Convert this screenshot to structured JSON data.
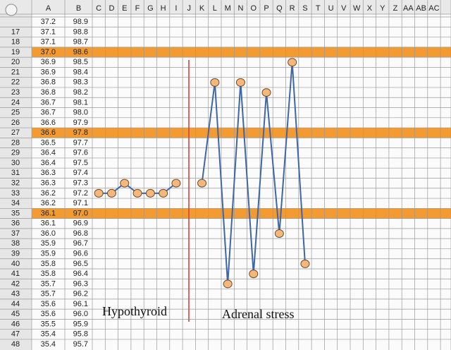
{
  "sheet": {
    "columns": [
      "A",
      "B",
      "C",
      "D",
      "E",
      "F",
      "G",
      "H",
      "I",
      "J",
      "K",
      "L",
      "M",
      "N",
      "O",
      "P",
      "Q",
      "R",
      "S",
      "T",
      "U",
      "V",
      "W",
      "X",
      "Y",
      "Z",
      "AA",
      "AB",
      "AC"
    ],
    "rows": [
      {
        "a": "37.2",
        "b": "98.9"
      },
      {
        "number": 17,
        "a": "37.1",
        "b": "98.8"
      },
      {
        "number": 18,
        "a": "37.1",
        "b": "98.7"
      },
      {
        "number": 19,
        "a": "37.0",
        "b": "98.6"
      },
      {
        "number": 20,
        "a": "36.9",
        "b": "98.5"
      },
      {
        "number": 21,
        "a": "36.9",
        "b": "98.4"
      },
      {
        "number": 22,
        "a": "36.8",
        "b": "98.3"
      },
      {
        "number": 23,
        "a": "36.8",
        "b": "98.2"
      },
      {
        "number": 24,
        "a": "36.7",
        "b": "98.1"
      },
      {
        "number": 25,
        "a": "36.7",
        "b": "98.0"
      },
      {
        "number": 26,
        "a": "36.6",
        "b": "97.9"
      },
      {
        "number": 27,
        "a": "36.6",
        "b": "97.8"
      },
      {
        "number": 28,
        "a": "36.5",
        "b": "97.7"
      },
      {
        "number": 29,
        "a": "36.4",
        "b": "97.6"
      },
      {
        "number": 30,
        "a": "36.4",
        "b": "97.5"
      },
      {
        "number": 31,
        "a": "36.3",
        "b": "97.4"
      },
      {
        "number": 32,
        "a": "36.3",
        "b": "97.3"
      },
      {
        "number": 33,
        "a": "36.2",
        "b": "97.2"
      },
      {
        "number": 34,
        "a": "36.2",
        "b": "97.1"
      },
      {
        "number": 35,
        "a": "36.1",
        "b": "97.0"
      },
      {
        "number": 36,
        "a": "36.1",
        "b": "96.9"
      },
      {
        "number": 37,
        "a": "36.0",
        "b": "96.8"
      },
      {
        "number": 38,
        "a": "35.9",
        "b": "96.7"
      },
      {
        "number": 39,
        "a": "35.9",
        "b": "96.6"
      },
      {
        "number": 40,
        "a": "35.8",
        "b": "96.5"
      },
      {
        "number": 41,
        "a": "35.8",
        "b": "96.4"
      },
      {
        "number": 42,
        "a": "35.7",
        "b": "96.3"
      },
      {
        "number": 43,
        "a": "35.7",
        "b": "96.2"
      },
      {
        "number": 44,
        "a": "35.6",
        "b": "96.1"
      },
      {
        "number": 45,
        "a": "35.6",
        "b": "96.0"
      },
      {
        "number": 46,
        "a": "35.5",
        "b": "95.9"
      },
      {
        "number": 47,
        "a": "35.4",
        "b": "95.8"
      },
      {
        "number": 48,
        "a": "35.4",
        "b": "95.7"
      }
    ],
    "highlighted_rows": [
      19,
      27,
      35
    ],
    "highlight_color": "#f39a30"
  },
  "chart_data": {
    "type": "line",
    "ylim": [
      98.9,
      95.7
    ],
    "marker_color": "#f6b77a",
    "divider_color": "#d0453f",
    "series": [
      {
        "color": "#3e66a8",
        "x": [
          "C",
          "D",
          "E",
          "F",
          "G",
          "H",
          "I"
        ],
        "values": [
          97.2,
          97.2,
          97.3,
          97.2,
          97.2,
          97.2,
          97.3
        ]
      },
      {
        "color": "#3e66a8",
        "x": [
          "K",
          "L",
          "M",
          "N",
          "O",
          "P",
          "Q",
          "R",
          "S"
        ],
        "values": [
          97.3,
          98.3,
          96.3,
          98.3,
          96.4,
          98.2,
          96.8,
          98.5,
          96.5
        ]
      }
    ],
    "annotations": [
      "Hypothyroid",
      "Adrenal stress"
    ]
  }
}
